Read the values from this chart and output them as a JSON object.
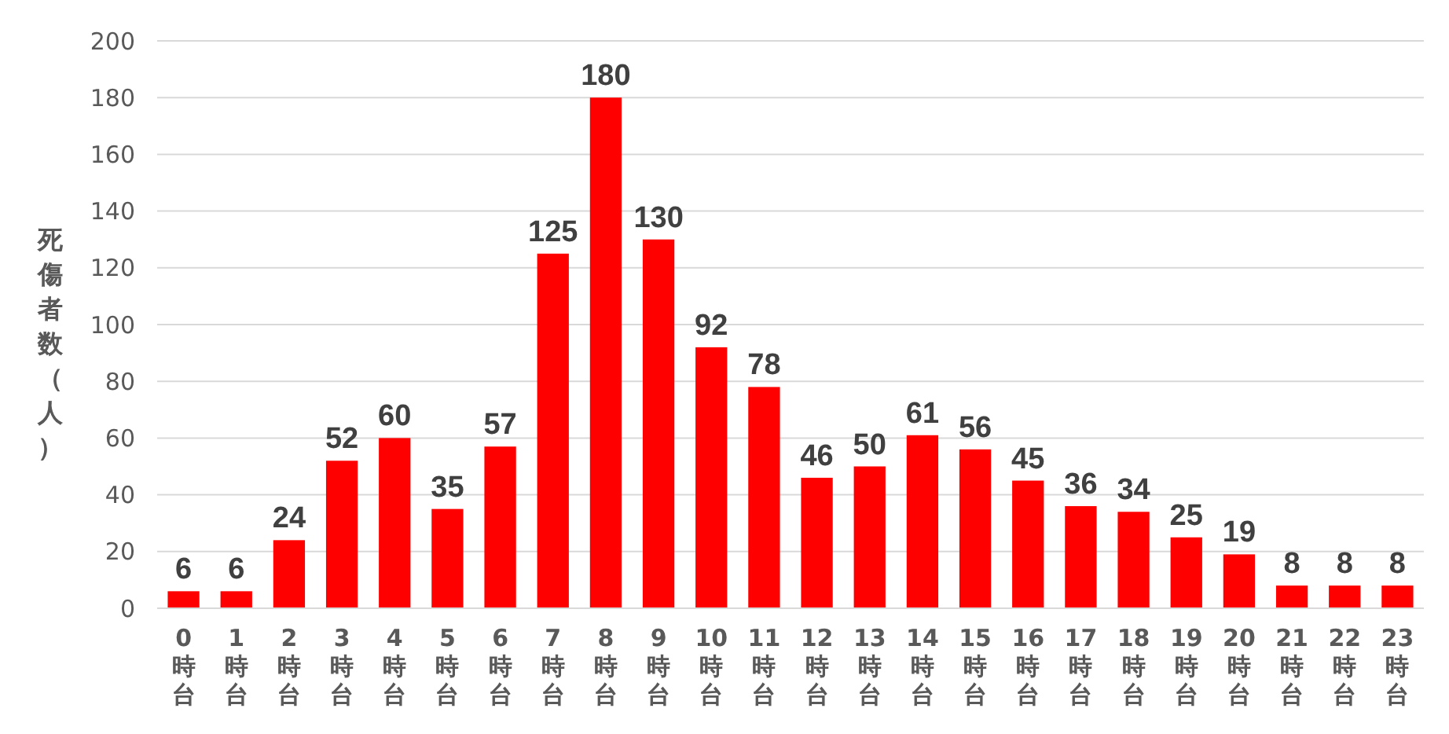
{
  "chart_data": {
    "type": "bar",
    "ylabel": "死傷者数（人）",
    "categories": [
      "0時台",
      "1時台",
      "2時台",
      "3時台",
      "4時台",
      "5時台",
      "6時台",
      "7時台",
      "8時台",
      "9時台",
      "10時台",
      "11時台",
      "12時台",
      "13時台",
      "14時台",
      "15時台",
      "16時台",
      "17時台",
      "18時台",
      "19時台",
      "20時台",
      "21時台",
      "22時台",
      "23時台"
    ],
    "values": [
      6,
      6,
      24,
      52,
      60,
      35,
      57,
      125,
      180,
      130,
      92,
      78,
      46,
      50,
      61,
      56,
      45,
      36,
      34,
      25,
      19,
      8,
      8,
      8
    ],
    "color": "#ff0000",
    "ylim": [
      0,
      200
    ],
    "yticks": [
      0,
      20,
      40,
      60,
      80,
      100,
      120,
      140,
      160,
      180,
      200
    ],
    "grid": "y",
    "data_labels": true
  }
}
